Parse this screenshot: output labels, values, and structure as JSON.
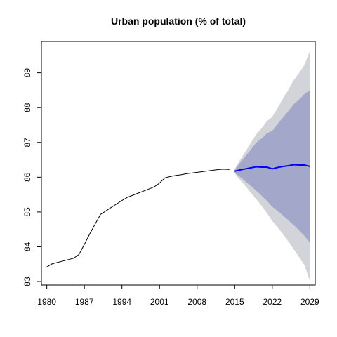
{
  "chart_data": {
    "type": "line",
    "title": "Urban population (% of total)",
    "xlabel": "",
    "ylabel": "",
    "xlim": [
      1979,
      2030
    ],
    "ylim": [
      82.9,
      89.9
    ],
    "x_ticks": [
      1980,
      1987,
      1994,
      2001,
      2008,
      2015,
      2022,
      2029
    ],
    "y_ticks": [
      83,
      84,
      85,
      86,
      87,
      88,
      89
    ],
    "grid": false,
    "legend": "none",
    "colors": {
      "history": "#000000",
      "forecast": "#0000ff",
      "band_80": "#a3a8ca",
      "band_95": "#d3d3da"
    },
    "history": {
      "x": [
        1980,
        1981,
        1982,
        1983,
        1984,
        1985,
        1986,
        1987,
        1988,
        1989,
        1990,
        1991,
        1992,
        1993,
        1994,
        1995,
        1996,
        1997,
        1998,
        1999,
        2000,
        2001,
        2002,
        2003,
        2004,
        2005,
        2006,
        2007,
        2008,
        2009,
        2010,
        2011,
        2012,
        2013,
        2014
      ],
      "y": [
        83.42,
        83.51,
        83.55,
        83.59,
        83.63,
        83.67,
        83.78,
        84.07,
        84.37,
        84.65,
        84.93,
        85.03,
        85.13,
        85.23,
        85.33,
        85.42,
        85.48,
        85.54,
        85.6,
        85.66,
        85.72,
        85.83,
        85.98,
        86.02,
        86.05,
        86.07,
        86.1,
        86.12,
        86.14,
        86.16,
        86.18,
        86.2,
        86.22,
        86.23,
        86.22
      ]
    },
    "forecast": {
      "x": [
        2015,
        2016,
        2017,
        2018,
        2019,
        2020,
        2021,
        2022,
        2023,
        2024,
        2025,
        2026,
        2027,
        2028,
        2029
      ],
      "mean": [
        86.17,
        86.21,
        86.24,
        86.27,
        86.3,
        86.29,
        86.29,
        86.24,
        86.28,
        86.31,
        86.33,
        86.36,
        86.35,
        86.35,
        86.31
      ],
      "lo80": [
        86.13,
        86.01,
        85.88,
        85.75,
        85.61,
        85.47,
        85.32,
        85.15,
        85.03,
        84.9,
        84.76,
        84.62,
        84.47,
        84.31,
        84.12
      ],
      "hi80": [
        86.21,
        86.41,
        86.6,
        86.79,
        86.99,
        87.11,
        87.26,
        87.33,
        87.53,
        87.72,
        87.9,
        88.1,
        88.23,
        88.39,
        88.5
      ],
      "lo95": [
        86.11,
        85.92,
        85.75,
        85.55,
        85.37,
        85.18,
        84.97,
        84.74,
        84.56,
        84.36,
        84.15,
        83.93,
        83.7,
        83.47,
        83.02
      ],
      "hi95": [
        86.23,
        86.5,
        86.73,
        86.99,
        87.23,
        87.4,
        87.61,
        87.74,
        87.99,
        88.26,
        88.51,
        88.79,
        89.0,
        89.23,
        89.62
      ]
    }
  }
}
